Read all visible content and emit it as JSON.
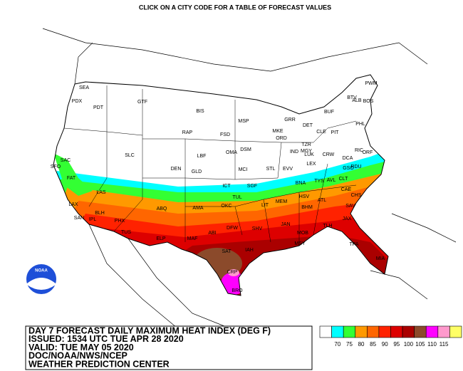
{
  "header": {
    "title": "CLICK ON A CITY CODE FOR A TABLE OF FORECAST VALUES"
  },
  "cities": [
    "SEA",
    "PDX",
    "PDT",
    "GTF",
    "BIS",
    "MSP",
    "SAC",
    "SFO",
    "FAT",
    "LAX",
    "SAN",
    "IPL",
    "LAS",
    "BLH",
    "PHX",
    "TUS",
    "SLC",
    "RAP",
    "FSD",
    "LBF",
    "OMA",
    "DSM",
    "DEN",
    "GLD",
    "MCI",
    "ICT",
    "SGF",
    "STL",
    "TUL",
    "OKC",
    "AMA",
    "ABQ",
    "ELP",
    "MAF",
    "ABI",
    "DFW",
    "SHV",
    "LIT",
    "MEM",
    "JAN",
    "BHM",
    "HSV",
    "ATL",
    "CAE",
    "CHS",
    "SAV",
    "JAX",
    "TLH",
    "MOB",
    "MSY",
    "IAH",
    "SAT",
    "CRP",
    "BRO",
    "TPA",
    "MIA",
    "MKE",
    "ORD",
    "GRR",
    "DET",
    "CLE",
    "PIT",
    "IND",
    "TZR",
    "MGY",
    "LUK",
    "LEX",
    "EVV",
    "BNA",
    "TYS",
    "AVL",
    "CLT",
    "GSO",
    "RDU",
    "RIC",
    "DCA",
    "PHL",
    "ALB",
    "BOS",
    "PWM",
    "BTV",
    "BUF",
    "CRW",
    "ORF"
  ],
  "info": [
    "DAY 7 FORECAST DAILY MAXIMUM HEAT INDEX (DEG F)",
    "ISSUED: 1534 UTC TUE APR 28 2020",
    "VALID: TUE MAY 05 2020",
    "DOC/NOAA/NWS/NCEP",
    "WEATHER PREDICTION CENTER"
  ],
  "logo": "NOAA",
  "legend": {
    "labels": [
      "70",
      "75",
      "80",
      "85",
      "90",
      "95",
      "100",
      "105",
      "110",
      "115"
    ],
    "colors": [
      "#ffffff",
      "#00ffff",
      "#33ff33",
      "#ff9900",
      "#ff6600",
      "#ff2200",
      "#dd0000",
      "#aa0000",
      "#8b4a2b",
      "#ff00ff",
      "#ff99cc",
      "#ffff66"
    ]
  }
}
